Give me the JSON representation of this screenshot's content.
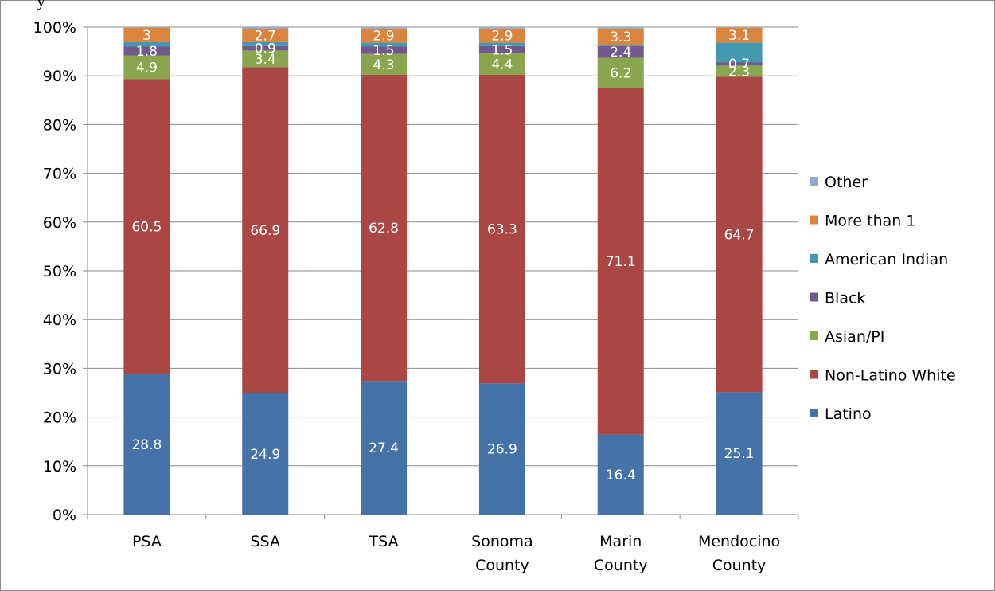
{
  "page": {
    "title_fragment": "y"
  },
  "chart_data": {
    "type": "bar",
    "stacked": true,
    "percent_stacked": true,
    "title": "",
    "xlabel": "",
    "ylabel": "",
    "ylim": [
      0,
      100
    ],
    "yticks": [
      "0%",
      "10%",
      "20%",
      "30%",
      "40%",
      "50%",
      "60%",
      "70%",
      "80%",
      "90%",
      "100%"
    ],
    "grid": true,
    "legend_position": "right",
    "categories": [
      [
        "PSA"
      ],
      [
        "SSA"
      ],
      [
        "TSA"
      ],
      [
        "Sonoma",
        "County"
      ],
      [
        "Marin",
        "County"
      ],
      [
        "Mendocino",
        "County"
      ]
    ],
    "series": [
      {
        "name": "Latino",
        "color": "#4572A7",
        "values": [
          28.8,
          24.9,
          27.4,
          26.9,
          16.4,
          25.1
        ],
        "labels": [
          "28.8",
          "24.9",
          "27.4",
          "26.9",
          "16.4",
          "25.1"
        ]
      },
      {
        "name": "Non-Latino White",
        "color": "#AA4643",
        "values": [
          60.5,
          66.9,
          62.8,
          63.3,
          71.1,
          64.7
        ],
        "labels": [
          "60.5",
          "66.9",
          "62.8",
          "63.3",
          "71.1",
          "64.7"
        ]
      },
      {
        "name": "Asian/PI",
        "color": "#89A54E",
        "values": [
          4.9,
          3.4,
          4.3,
          4.4,
          6.2,
          2.3
        ],
        "labels": [
          "4.9",
          "3.4",
          "4.3",
          "4.4",
          "6.2",
          "2.3"
        ]
      },
      {
        "name": "Black",
        "color": "#71588F",
        "values": [
          1.8,
          0.9,
          1.5,
          1.5,
          2.4,
          0.7
        ],
        "labels": [
          "1.8",
          "0.9",
          "1.5",
          "1.5",
          "2.4",
          "0.7"
        ]
      },
      {
        "name": "American Indian",
        "color": "#4198AF",
        "values": [
          0.9,
          0.8,
          0.8,
          0.7,
          0.3,
          4.0
        ],
        "labels": [
          "",
          "",
          "",
          "",
          "",
          ""
        ]
      },
      {
        "name": "More than 1",
        "color": "#DB843D",
        "values": [
          3.0,
          2.7,
          2.9,
          2.9,
          3.3,
          3.1
        ],
        "labels": [
          "3",
          "2.7",
          "2.9",
          "2.9",
          "3.3",
          "3.1"
        ]
      },
      {
        "name": "Other",
        "color": "#93A9CF",
        "values": [
          0.1,
          0.4,
          0.3,
          0.3,
          0.3,
          0.1
        ],
        "labels": [
          "",
          "",
          "",
          "",
          "",
          ""
        ]
      }
    ],
    "legend_order": [
      "Other",
      "More than 1",
      "American Indian",
      "Black",
      "Asian/PI",
      "Non-Latino White",
      "Latino"
    ]
  }
}
